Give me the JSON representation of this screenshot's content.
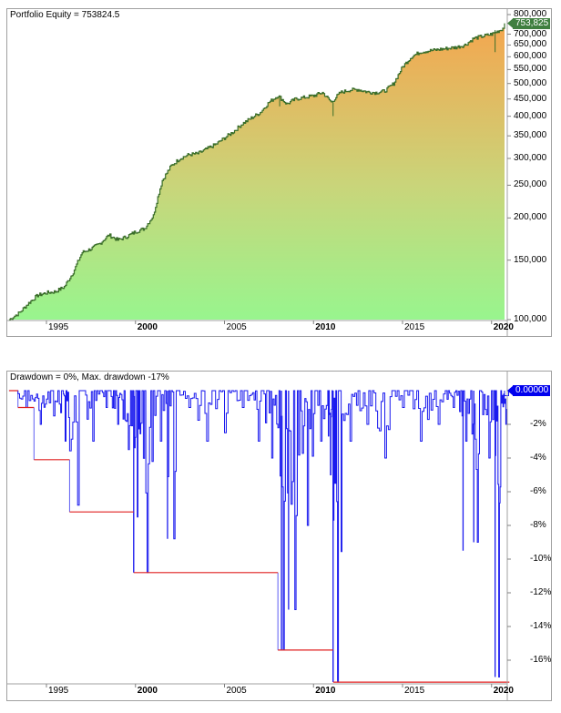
{
  "equity_panel": {
    "title": "Portfolio Equity = 753824.5",
    "current_value_tag": "753,825",
    "tag_color": "#3f7f3f",
    "line_color": "#3a6e2a",
    "fill_top_color": "#f4a64f",
    "fill_bottom_color": "#98f58e",
    "y_ticks": [
      "800,000",
      "700,000",
      "650,000",
      "600,000",
      "550,000",
      "500,000",
      "450,000",
      "400,000",
      "350,000",
      "300,000",
      "250,000",
      "200,000",
      "150,000",
      "100,000"
    ]
  },
  "drawdown_panel": {
    "title": "Drawdown = 0%, Max. drawdown -17%",
    "current_value_tag": "0.00000",
    "tag_color": "#0000ee",
    "line_color": "#1a1aee",
    "max_dd_line_color": "#e02020",
    "y_ticks": [
      "-2%",
      "-4%",
      "-6%",
      "-8%",
      "-10%",
      "-12%",
      "-14%",
      "-16%"
    ]
  },
  "x_axis": {
    "labels": [
      "1995",
      "2000",
      "2005",
      "2010",
      "2015",
      "2020"
    ],
    "bold": [
      false,
      true,
      false,
      true,
      false,
      true
    ]
  },
  "chart_data": [
    {
      "type": "area",
      "title": "Portfolio Equity = 753824.5",
      "xlabel": "",
      "ylabel": "",
      "yscale": "log",
      "ylim": [
        100000,
        800000
      ],
      "x": [
        1992.9,
        1993.5,
        1994.0,
        1994.5,
        1995.0,
        1995.5,
        1996.0,
        1996.5,
        1997.0,
        1997.5,
        1998.0,
        1998.5,
        1999.0,
        1999.5,
        2000.0,
        2000.5,
        2001.0,
        2001.5,
        2002.0,
        2002.5,
        2003.0,
        2003.5,
        2004.0,
        2004.5,
        2005.0,
        2005.5,
        2006.0,
        2006.5,
        2007.0,
        2007.5,
        2008.0,
        2008.5,
        2009.0,
        2009.5,
        2010.0,
        2010.5,
        2011.0,
        2011.5,
        2012.0,
        2012.5,
        2013.0,
        2013.5,
        2014.0,
        2014.5,
        2015.0,
        2015.5,
        2016.0,
        2016.5,
        2017.0,
        2017.5,
        2018.0,
        2018.5,
        2019.0,
        2019.5,
        2020.0,
        2020.5,
        2021.0
      ],
      "series": [
        {
          "name": "Portfolio Equity",
          "values": [
            100000,
            105000,
            112000,
            118000,
            120000,
            121000,
            125000,
            138000,
            158000,
            162000,
            168000,
            178000,
            172000,
            176000,
            182000,
            186000,
            203000,
            258000,
            285000,
            300000,
            308000,
            310000,
            320000,
            330000,
            345000,
            360000,
            380000,
            395000,
            410000,
            440000,
            460000,
            435000,
            450000,
            455000,
            460000,
            470000,
            440000,
            470000,
            478000,
            480000,
            472000,
            470000,
            475000,
            500000,
            560000,
            600000,
            620000,
            625000,
            630000,
            635000,
            640000,
            650000,
            680000,
            690000,
            700000,
            720000,
            753825
          ]
        }
      ],
      "y_ticks": [
        100000,
        150000,
        200000,
        250000,
        300000,
        350000,
        400000,
        450000,
        500000,
        550000,
        600000,
        650000,
        700000,
        800000
      ],
      "x_ticks": [
        "1995",
        "2000",
        "2005",
        "2010",
        "2015",
        "2020"
      ],
      "grid": false,
      "last_value": 753824.5
    },
    {
      "type": "line",
      "title": "Drawdown = 0%, Max. drawdown -17%",
      "xlabel": "",
      "ylabel": "",
      "ylim": [
        -17.5,
        0
      ],
      "x": [
        1992.9,
        1993.4,
        1994.3,
        1995.0,
        1995.8,
        1996.3,
        1997.2,
        1998.0,
        1998.7,
        1999.3,
        1999.9,
        2000.3,
        2001.0,
        2001.8,
        2002.5,
        2003.5,
        2004.5,
        2005.5,
        2006.5,
        2007.3,
        2008.0,
        2008.6,
        2009.3,
        2010.0,
        2010.8,
        2011.1,
        2011.6,
        2012.5,
        2013.5,
        2014.5,
        2015.5,
        2016.5,
        2017.5,
        2018.2,
        2018.9,
        2019.5,
        2020.2,
        2020.6,
        2021.0
      ],
      "series": [
        {
          "name": "Drawdown %",
          "values": [
            0,
            -1.0,
            -2.0,
            -1.5,
            -3.0,
            -6.8,
            -3.0,
            -1.0,
            -2.0,
            -3.5,
            -7.5,
            -10.8,
            -3.0,
            -8.8,
            -1.0,
            -3.0,
            -2.5,
            -1.0,
            -3.0,
            -4.0,
            -15.4,
            -13.0,
            -8.0,
            -3.0,
            -5.0,
            -17.3,
            -3.0,
            -2.0,
            -4.0,
            -1.0,
            -3.0,
            -2.0,
            -1.0,
            -3.0,
            -9.0,
            -4.0,
            -17.0,
            -2.0,
            0
          ]
        },
        {
          "name": "Max drawdown %",
          "values": [
            0,
            -1.0,
            -4.1,
            -4.1,
            -4.1,
            -7.2,
            -7.2,
            -7.2,
            -7.2,
            -7.2,
            -10.8,
            -10.8,
            -10.8,
            -10.8,
            -10.8,
            -10.8,
            -10.8,
            -10.8,
            -10.8,
            -10.8,
            -15.4,
            -15.4,
            -15.4,
            -15.4,
            -15.4,
            -17.3,
            -17.3,
            -17.3,
            -17.3,
            -17.3,
            -17.3,
            -17.3,
            -17.3,
            -17.3,
            -17.3,
            -17.3,
            -17.3,
            -17.3,
            -17.3
          ]
        }
      ],
      "y_ticks": [
        "-2%",
        "-4%",
        "-6%",
        "-8%",
        "-10%",
        "-12%",
        "-14%",
        "-16%"
      ],
      "x_ticks": [
        "1995",
        "2000",
        "2005",
        "2010",
        "2015",
        "2020"
      ],
      "grid": false,
      "last_value": 0.0,
      "max_drawdown": -17
    }
  ]
}
